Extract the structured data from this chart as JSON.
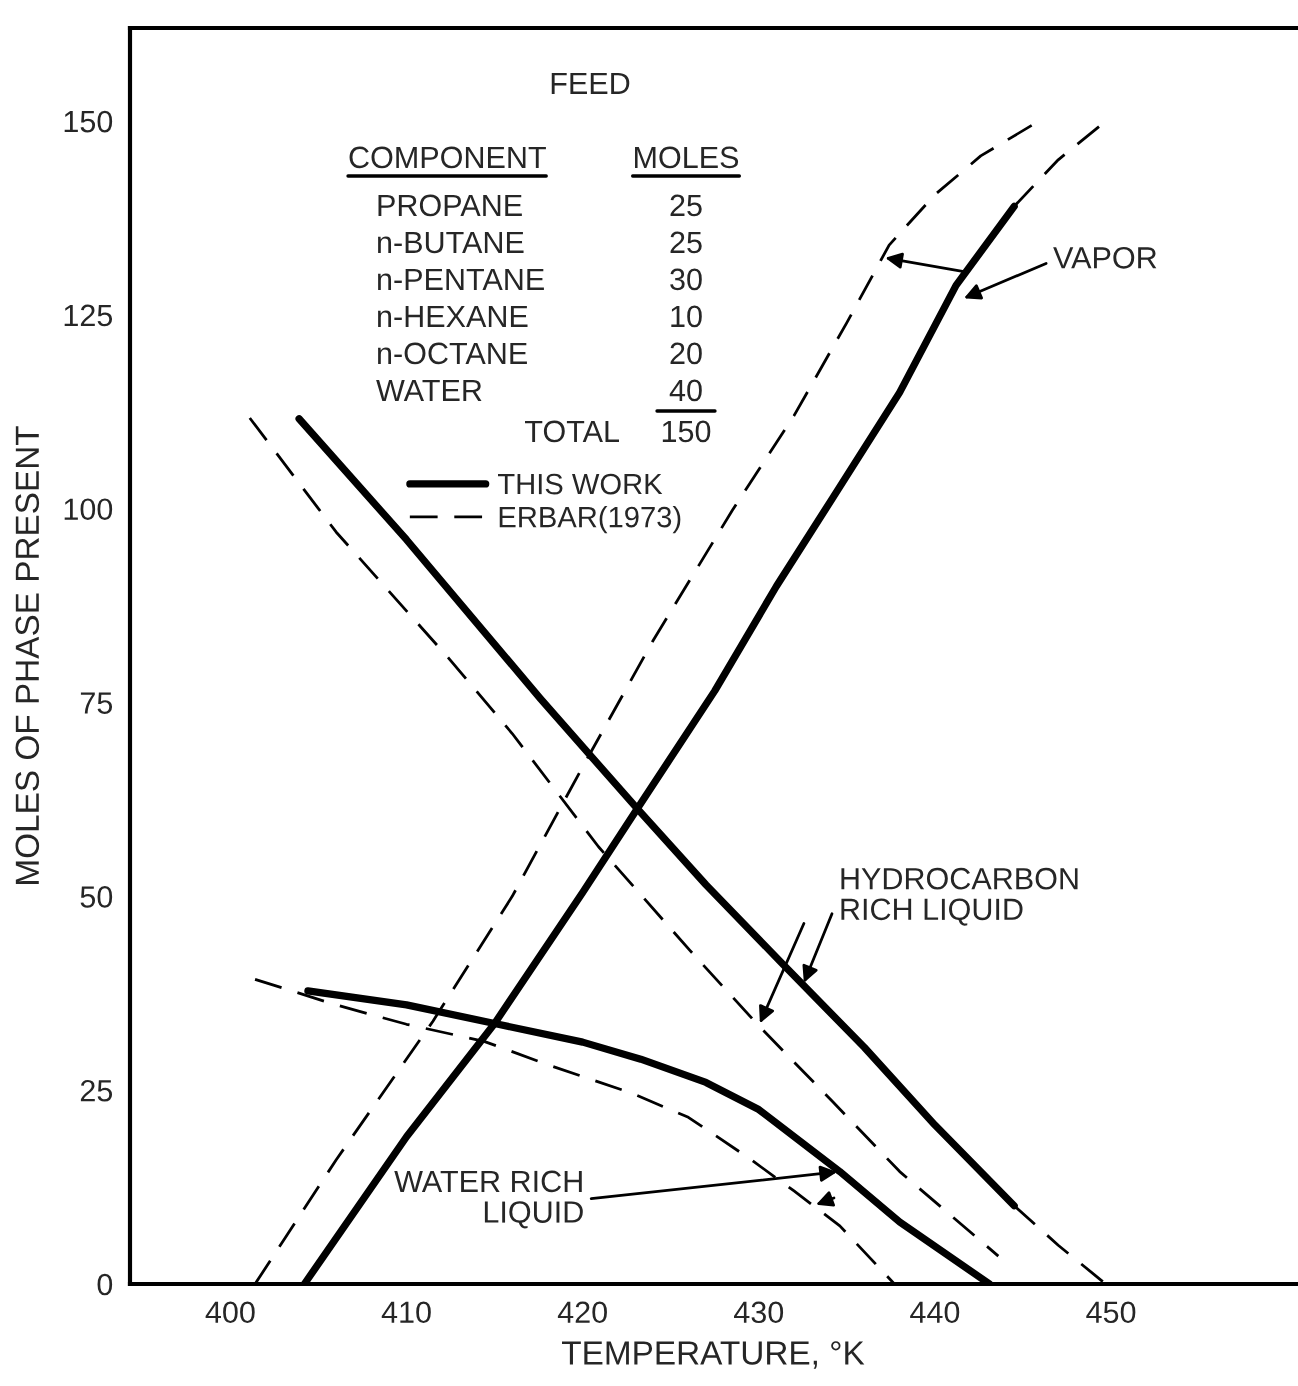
{
  "chart_data": {
    "type": "line",
    "xlabel": "TEMPERATURE, °K",
    "ylabel": "MOLES OF PHASE PRESENT",
    "xlim": [
      394.3,
      460.5
    ],
    "ylim": [
      0,
      162
    ],
    "xticks": [
      400,
      410,
      420,
      430,
      440,
      450
    ],
    "yticks": [
      0,
      25,
      50,
      75,
      100,
      125,
      150
    ],
    "grid": false,
    "legend": "top left",
    "series": [
      {
        "name": "THIS WORK",
        "color": "#000000",
        "line_style": "solid",
        "x": [
          404.2,
          410,
          415,
          420,
          423.1,
          427.5,
          431,
          434.2,
          438,
          441.2,
          444.5
        ],
        "values": [
          0,
          19,
          33.6,
          50.5,
          61.3,
          76.5,
          90,
          101.4,
          115,
          128.8,
          139
        ]
      },
      {
        "name": "ERBAR(1973)",
        "color": "#000000",
        "line_style": "dashed",
        "x": [
          401.4,
          406,
          411.5,
          416,
          420,
          424,
          428.5,
          432,
          435,
          437.4,
          440,
          442.6,
          445.9
        ],
        "values": [
          0,
          16,
          33.9,
          50,
          66.7,
          83,
          99.8,
          112,
          124,
          134,
          140.5,
          145.5,
          150
        ]
      },
      {
        "color": "#000000",
        "line_style": "dashed",
        "x": [
          444.5,
          447,
          449.7
        ],
        "values": [
          139,
          145,
          150
        ]
      },
      {
        "color": "#000000",
        "line_style": "solid",
        "x": [
          403.9,
          410,
          417.6,
          423.1,
          427,
          431.3,
          436,
          440,
          444.5
        ],
        "values": [
          111.6,
          96,
          75.5,
          61.3,
          51.5,
          41.4,
          30.5,
          20.5,
          10.1
        ]
      },
      {
        "color": "#000000",
        "line_style": "dashed",
        "x": [
          401.1,
          406,
          412.4,
          416,
          420.9,
          426.1,
          430,
          434.2,
          438,
          443.6
        ],
        "values": [
          111.7,
          97,
          80.7,
          71,
          56.4,
          43,
          33.3,
          23.5,
          14.5,
          3.6
        ]
      },
      {
        "color": "#000000",
        "line_style": "dashed",
        "x": [
          444.5,
          447,
          449.7
        ],
        "values": [
          10.1,
          5,
          0
        ]
      },
      {
        "color": "#000000",
        "line_style": "solid",
        "x": [
          404.4,
          410,
          415,
          420,
          423.3,
          427,
          430,
          434.6,
          438,
          443.1
        ],
        "values": [
          37.8,
          36,
          33.6,
          31.2,
          29,
          26,
          22.5,
          14.5,
          8,
          0
        ]
      },
      {
        "color": "#000000",
        "line_style": "dashed",
        "x": [
          401.4,
          406,
          410,
          414.4,
          418,
          422.8,
          426,
          429.4,
          432,
          434.6,
          437.7
        ],
        "values": [
          39.3,
          36,
          33.5,
          31.3,
          28.3,
          24.6,
          21.5,
          16.3,
          12,
          7.5,
          0
        ]
      }
    ],
    "annotations": [
      "FEED",
      "COMPONENT",
      "MOLES",
      "PROPANE",
      "25",
      "n-BUTANE",
      "25",
      "n-PENTANE",
      "30",
      "n-HEXANE",
      "10",
      "n-OCTANE",
      "20",
      "WATER",
      "40",
      "TOTAL",
      "150",
      {
        "text": "VAPOR",
        "x": 441.5,
        "y": 127
      },
      {
        "text": "HYDROCARBON\nRICH LIQUID",
        "x": 432.5,
        "y": 38.5
      },
      {
        "text": "WATER RICH\nLIQUID",
        "x": 434.6,
        "y": 14.5
      }
    ]
  }
}
